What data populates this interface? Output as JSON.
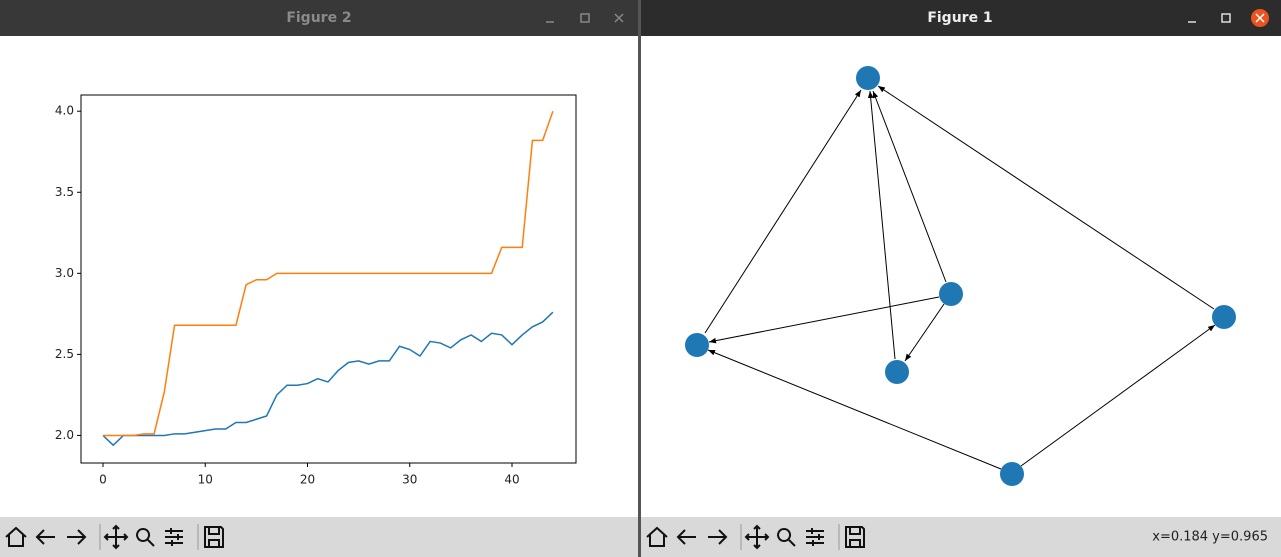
{
  "windows": [
    {
      "title": "Figure 2"
    },
    {
      "title": "Figure 1",
      "status": "x=0.184 y=0.965"
    }
  ],
  "chart_data": {
    "type": "line",
    "xlim": [
      -2.15,
      46.26
    ],
    "xticks": [
      0,
      10,
      20,
      30,
      40
    ],
    "ylim": [
      1.83,
      4.1
    ],
    "yticks": [
      {
        "value": 2,
        "label": "2.0"
      },
      2.5,
      {
        "value": 3,
        "label": "3.0"
      },
      3.5,
      {
        "value": 4,
        "label": "4.0"
      }
    ],
    "series": [
      {
        "color": "#1f77b4",
        "values": [
          2.0,
          1.94,
          2.0,
          2.0,
          2.0,
          2.0,
          2.0,
          2.01,
          2.01,
          2.02,
          2.03,
          2.04,
          2.04,
          2.08,
          2.08,
          2.1,
          2.12,
          2.25,
          2.31,
          2.31,
          2.32,
          2.35,
          2.33,
          2.4,
          2.45,
          2.46,
          2.44,
          2.46,
          2.46,
          2.55,
          2.53,
          2.49,
          2.58,
          2.57,
          2.54,
          2.59,
          2.62,
          2.58,
          2.63,
          2.62,
          2.56,
          2.62,
          2.67,
          2.7,
          2.76
        ]
      },
      {
        "color": "#ff7f0e",
        "values": [
          2.0,
          2.0,
          2.0,
          2.0,
          2.01,
          2.01,
          2.27,
          2.68,
          2.68,
          2.68,
          2.68,
          2.68,
          2.68,
          2.68,
          2.93,
          2.96,
          2.96,
          3.0,
          3.0,
          3.0,
          3.0,
          3.0,
          3.0,
          3.0,
          3.0,
          3.0,
          3.0,
          3.0,
          3.0,
          3.0,
          3.0,
          3.0,
          3.0,
          3.0,
          3.0,
          3.0,
          3.0,
          3.0,
          3.0,
          3.16,
          3.16,
          3.16,
          3.82,
          3.82,
          4.0
        ]
      }
    ]
  }
}
